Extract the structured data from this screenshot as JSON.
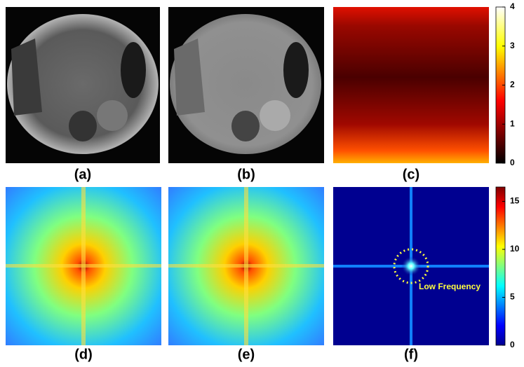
{
  "panels": [
    {
      "label": "(a)"
    },
    {
      "label": "(b)"
    },
    {
      "label": "(c)"
    },
    {
      "label": "(d)"
    },
    {
      "label": "(e)"
    },
    {
      "label": "(f)",
      "annotation": "Low Frequency"
    }
  ],
  "colorbars": [
    {
      "lim": [
        0,
        4
      ],
      "ticks": [
        0,
        1,
        2,
        3,
        4
      ]
    },
    {
      "lim": [
        0,
        16.5
      ],
      "ticks": [
        0,
        5,
        10,
        15
      ]
    }
  ]
}
